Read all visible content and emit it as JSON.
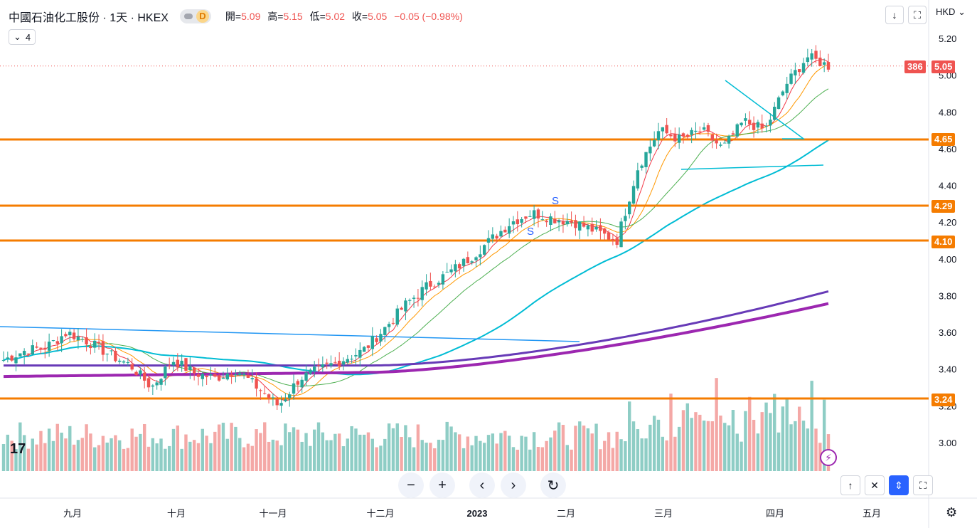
{
  "header": {
    "title": "中國石油化工股份 · 1天 · HKEX",
    "interval_badge": "D",
    "open_label": "開=",
    "open": "5.09",
    "high_label": "高=",
    "high": "5.15",
    "low_label": "低=",
    "low": "5.02",
    "close_label": "收=",
    "close": "5.05",
    "change": "−0.05 (−0.98%)",
    "indicators_count": "4"
  },
  "currency": "HKD",
  "price_label": {
    "countdown": "386",
    "last": "5.05"
  },
  "colors": {
    "up": "#26a69a",
    "down": "#ef5350",
    "vol_up": "#8ecdc5",
    "vol_down": "#f4a8a6",
    "ma1": "#f23645",
    "ma2": "#ff9800",
    "ma3": "#4caf50",
    "ma4": "#00bcd4",
    "ma5": "#673ab7",
    "ma6": "#9c27b0",
    "hline": "#f57c00",
    "trend": "#00bcd4",
    "trend2": "#2196f3",
    "signal": "#2962ff"
  },
  "chart_data": {
    "type": "candlestick",
    "y_axis_ticks": [
      "5.20",
      "5.00",
      "4.80",
      "4.60",
      "4.40",
      "4.20",
      "4.00",
      "3.80",
      "3.60",
      "3.40",
      "3.20",
      "3.00"
    ],
    "x_axis_labels": [
      "九月",
      "十月",
      "十一月",
      "十二月",
      "2023",
      "二月",
      "三月",
      "四月",
      "五月"
    ],
    "horizontal_levels": [
      "4.65",
      "4.29",
      "4.10",
      "3.24"
    ],
    "signals": [
      "S",
      "S"
    ],
    "approx_closes": [
      3.45,
      3.5,
      3.52,
      3.6,
      3.55,
      3.48,
      3.42,
      3.3,
      3.45,
      3.38,
      3.35,
      3.4,
      3.3,
      3.2,
      3.35,
      3.4,
      3.45,
      3.5,
      3.62,
      3.75,
      3.85,
      3.92,
      4.0,
      4.1,
      4.2,
      4.25,
      4.22,
      4.2,
      4.15,
      4.1,
      4.5,
      4.7,
      4.65,
      4.7,
      4.6,
      4.75,
      4.7,
      4.95,
      5.1,
      5.05
    ]
  }
}
